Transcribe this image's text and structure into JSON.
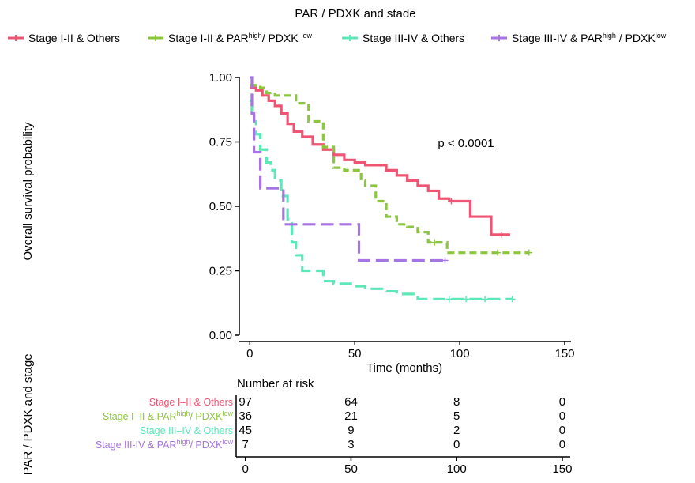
{
  "chart_data": {
    "type": "line",
    "title": "PAR / PDXK and stade",
    "xlabel": "Time (months)",
    "ylabel": "Overall survival probability",
    "xlim": [
      -5,
      153
    ],
    "ylim": [
      0,
      1
    ],
    "x_ticks": [
      0,
      50,
      100,
      150
    ],
    "y_ticks": [
      0.0,
      0.25,
      0.5,
      0.75,
      1.0
    ],
    "y_tick_labels": [
      "0.00",
      "0.25",
      "0.50",
      "0.75",
      "1.00"
    ],
    "grid": false,
    "legend_placement": "top",
    "annotation": "p < 0.0001",
    "series": [
      {
        "name": "Stage I-II & Others",
        "name_parts": [
          {
            "t": "Stage I-II & Others"
          }
        ],
        "risk_label_parts": [
          {
            "t": "Stage I–II & Others"
          }
        ],
        "color": "#ef5572",
        "dash": "",
        "x": [
          0,
          3,
          6,
          9,
          12,
          15,
          18,
          21,
          25,
          30,
          35,
          40,
          45,
          50,
          55,
          60,
          65,
          70,
          75,
          80,
          85,
          90,
          95,
          100,
          105,
          110,
          115,
          120,
          124
        ],
        "y": [
          0.96,
          0.95,
          0.93,
          0.91,
          0.89,
          0.86,
          0.82,
          0.79,
          0.77,
          0.74,
          0.72,
          0.7,
          0.68,
          0.67,
          0.66,
          0.66,
          0.64,
          0.62,
          0.6,
          0.58,
          0.56,
          0.53,
          0.52,
          0.52,
          0.46,
          0.46,
          0.39,
          0.39,
          0.39
        ],
        "censor_x": [
          96,
          120
        ]
      },
      {
        "name": "Stage I-II & PAR high / PDXK low",
        "name_parts": [
          {
            "t": "Stage I-II & PAR"
          },
          {
            "t": "high",
            "sup": true
          },
          {
            "t": "/ PDXK "
          },
          {
            "t": "low",
            "sup": true
          }
        ],
        "risk_label_parts": [
          {
            "t": "Stage I–II & PAR"
          },
          {
            "t": "high",
            "sup": true
          },
          {
            "t": "/ PDXK"
          },
          {
            "t": "low",
            "sup": true
          }
        ],
        "color": "#8cc63f",
        "dash": "9,5",
        "x": [
          0,
          5,
          8,
          12,
          18,
          22,
          28,
          35,
          40,
          45,
          50,
          53,
          55,
          60,
          65,
          70,
          75,
          80,
          85,
          90,
          94,
          100,
          110,
          120,
          133
        ],
        "y": [
          0.97,
          0.96,
          0.94,
          0.93,
          0.93,
          0.9,
          0.83,
          0.73,
          0.65,
          0.64,
          0.64,
          0.6,
          0.58,
          0.52,
          0.46,
          0.43,
          0.42,
          0.4,
          0.36,
          0.36,
          0.32,
          0.32,
          0.32,
          0.32,
          0.32
        ],
        "censor_x": [
          88,
          118,
          133
        ]
      },
      {
        "name": "Stage III-IV & Others",
        "name_parts": [
          {
            "t": "Stage III-IV & Others"
          }
        ],
        "risk_label_parts": [
          {
            "t": "Stage III–IV & Others"
          }
        ],
        "color": "#5fe8b7",
        "dash": "16,7",
        "x": [
          0,
          1,
          2,
          3,
          5,
          8,
          10,
          12,
          15,
          18,
          20,
          22,
          25,
          30,
          35,
          40,
          45,
          50,
          55,
          60,
          65,
          70,
          80,
          85,
          90,
          100,
          110,
          120,
          125
        ],
        "y": [
          0.91,
          0.87,
          0.83,
          0.78,
          0.72,
          0.67,
          0.64,
          0.6,
          0.54,
          0.45,
          0.36,
          0.31,
          0.25,
          0.25,
          0.21,
          0.2,
          0.2,
          0.19,
          0.18,
          0.18,
          0.17,
          0.16,
          0.14,
          0.14,
          0.14,
          0.14,
          0.14,
          0.14,
          0.14
        ],
        "censor_x": [
          95,
          103,
          112,
          125
        ]
      },
      {
        "name": "Stage III-IV & PAR high / PDXK low",
        "name_parts": [
          {
            "t": "Stage III-IV & PAR"
          },
          {
            "t": "high",
            "sup": true
          },
          {
            "t": " / PDXK"
          },
          {
            "t": "low",
            "sup": true
          }
        ],
        "risk_label_parts": [
          {
            "t": "Stage III-IV & PAR"
          },
          {
            "t": "high",
            "sup": true
          },
          {
            "t": "/ PDXK"
          },
          {
            "t": "low",
            "sup": true
          }
        ],
        "color": "#a774e6",
        "dash": "16,7",
        "x": [
          0,
          1,
          2,
          5,
          15,
          16,
          50,
          52,
          93
        ],
        "y": [
          1.0,
          0.86,
          0.71,
          0.57,
          0.57,
          0.43,
          0.43,
          0.29,
          0.29
        ],
        "censor_x": [
          93
        ]
      }
    ],
    "risk_table": {
      "title": "Number at risk",
      "y_axis_label": "PAR / PDXK and stage",
      "times": [
        0,
        50,
        100,
        150
      ],
      "counts": [
        [
          97,
          64,
          8,
          0
        ],
        [
          36,
          21,
          5,
          0
        ],
        [
          45,
          9,
          2,
          0
        ],
        [
          7,
          3,
          0,
          0
        ]
      ]
    }
  }
}
